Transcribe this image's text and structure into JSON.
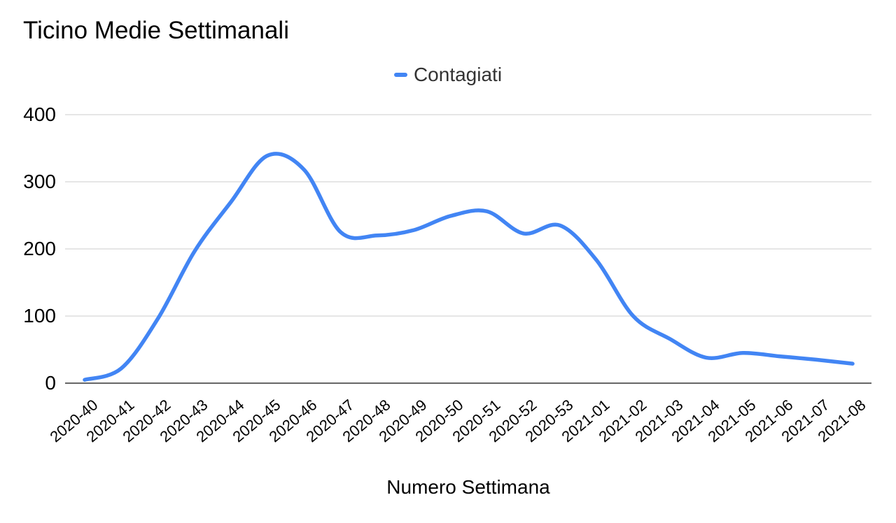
{
  "chart_data": {
    "type": "line",
    "title": "Ticino Medie Settimanali",
    "xlabel": "Numero Settimana",
    "ylabel": "",
    "ylim": [
      0,
      400
    ],
    "yticks": [
      0,
      100,
      200,
      300,
      400
    ],
    "grid": true,
    "smooth": true,
    "legend_position": "top-center",
    "categories": [
      "2020-40",
      "2020-41",
      "2020-42",
      "2020-43",
      "2020-44",
      "2020-45",
      "2020-46",
      "2020-47",
      "2020-48",
      "2020-49",
      "2020-50",
      "2020-51",
      "2020-52",
      "2020-53",
      "2021-01",
      "2021-02",
      "2021-03",
      "2021-04",
      "2021-05",
      "2021-06",
      "2021-07",
      "2021-08"
    ],
    "series": [
      {
        "name": "Contagiati",
        "values": [
          5,
          22,
          96,
          196,
          270,
          339,
          318,
          225,
          220,
          228,
          249,
          256,
          223,
          235,
          183,
          100,
          66,
          38,
          45,
          40,
          35,
          29
        ]
      }
    ],
    "colors": {
      "line": "#4285f4",
      "gridline": "#e6e6e6",
      "axis_line": "#666666",
      "title_text": "#000000",
      "legend_text": "#333333",
      "tick_text": "#000000"
    }
  }
}
